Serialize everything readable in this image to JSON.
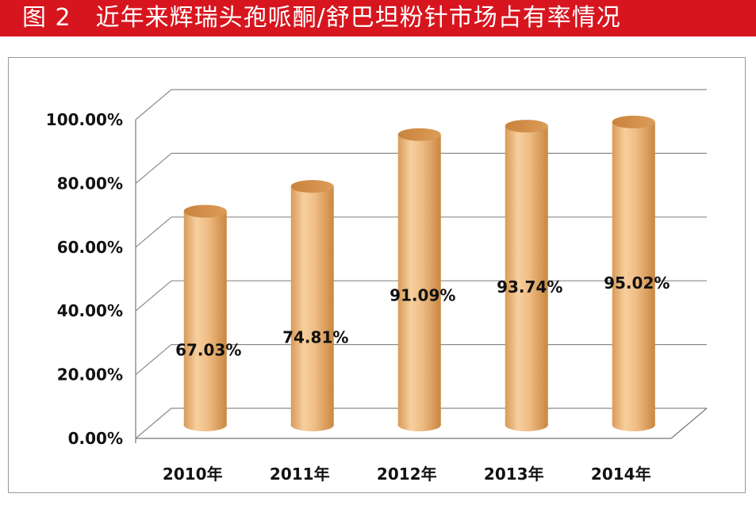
{
  "figure": {
    "title": "图 2　近年来辉瑞头孢哌酮/舒巴坦粉针市场占有率情况",
    "accent_color": "#d7151e",
    "bar_color": "#e9b47c"
  },
  "chart_data": {
    "type": "bar",
    "categories": [
      "2010年",
      "2011年",
      "2012年",
      "2013年",
      "2014年"
    ],
    "values": [
      67.03,
      74.81,
      91.09,
      93.74,
      95.02
    ],
    "data_labels": [
      "67.03%",
      "74.81%",
      "91.09%",
      "93.74%",
      "95.02%"
    ],
    "y_ticks": [
      "0.00%",
      "20.00%",
      "40.00%",
      "60.00%",
      "80.00%",
      "100.00%"
    ],
    "y_tick_values": [
      0,
      20,
      40,
      60,
      80,
      100
    ],
    "ylim": [
      0,
      100
    ],
    "grid": true,
    "style": "3d-cylinder",
    "title": "",
    "xlabel": "",
    "ylabel": ""
  }
}
